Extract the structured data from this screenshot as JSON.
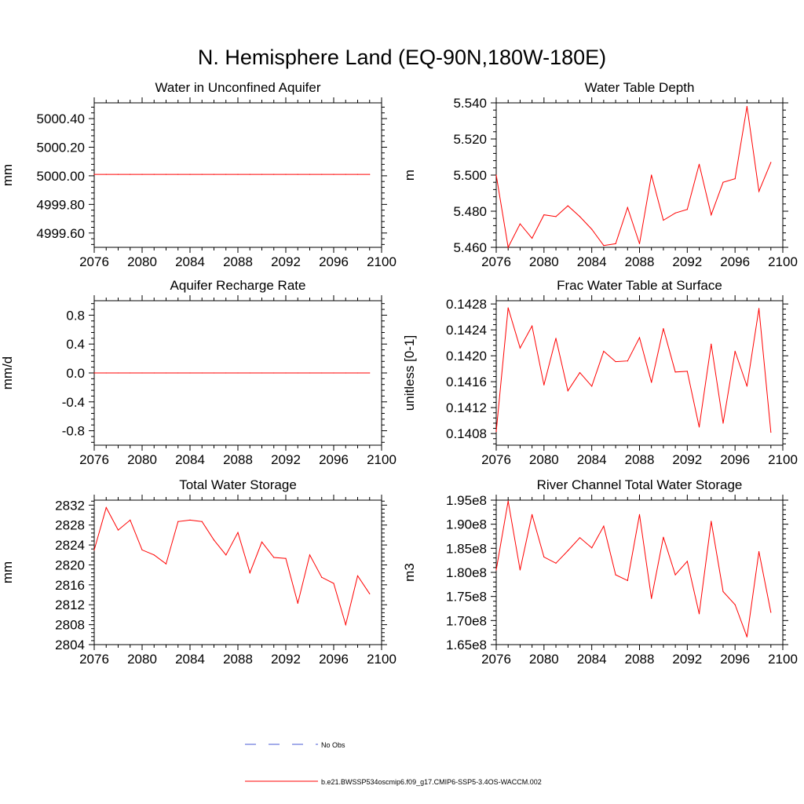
{
  "figure": {
    "title": "N. Hemisphere Land (EQ-90N,180W-180E)",
    "series_color": "#ff0000",
    "obs_color": "#4a5bd4",
    "legend": {
      "obs_label": "No Obs",
      "model_label": "b.e21.BWSSP534oscmip6.f09_g17.CMIP6-SSP5-3.4OS-WACCM.002"
    }
  },
  "chart_data": [
    {
      "type": "line",
      "title": "Water in Unconfined Aquifer",
      "ylabel": "mm",
      "xlim": [
        2076,
        2100
      ],
      "xticks": [
        2076,
        2080,
        2084,
        2088,
        2092,
        2096,
        2100
      ],
      "xtick_labels": [
        "2076",
        "2080",
        "2084",
        "2088",
        "2092",
        "2096",
        "2100"
      ],
      "ylim": [
        4999.5,
        5000.51
      ],
      "yticks": [
        4999.6,
        4999.8,
        5000.0,
        5000.2,
        5000.4
      ],
      "ytick_labels": [
        "4999.60",
        "4999.80",
        "5000.00",
        "5000.20",
        "5000.40"
      ],
      "yminor_step": 0.04,
      "x": [
        2076,
        2077,
        2078,
        2079,
        2080,
        2081,
        2082,
        2083,
        2084,
        2085,
        2086,
        2087,
        2088,
        2089,
        2090,
        2091,
        2092,
        2093,
        2094,
        2095,
        2096,
        2097,
        2098,
        2099
      ],
      "values": [
        5000.01,
        5000.01,
        5000.01,
        5000.01,
        5000.01,
        5000.01,
        5000.01,
        5000.01,
        5000.01,
        5000.01,
        5000.01,
        5000.01,
        5000.01,
        5000.01,
        5000.01,
        5000.01,
        5000.01,
        5000.01,
        5000.01,
        5000.01,
        5000.01,
        5000.01,
        5000.01,
        5000.01
      ]
    },
    {
      "type": "line",
      "title": "Water Table Depth",
      "ylabel": "m",
      "xlim": [
        2076,
        2100
      ],
      "xticks": [
        2076,
        2080,
        2084,
        2088,
        2092,
        2096,
        2100
      ],
      "xtick_labels": [
        "2076",
        "2080",
        "2084",
        "2088",
        "2092",
        "2096",
        "2100"
      ],
      "ylim": [
        5.46,
        5.54
      ],
      "yticks": [
        5.46,
        5.48,
        5.5,
        5.52,
        5.54
      ],
      "ytick_labels": [
        "5.460",
        "5.480",
        "5.500",
        "5.520",
        "5.540"
      ],
      "yminor_step": 0.004,
      "x": [
        2076,
        2077,
        2078,
        2079,
        2080,
        2081,
        2082,
        2083,
        2084,
        2085,
        2086,
        2087,
        2088,
        2089,
        2090,
        2091,
        2092,
        2093,
        2094,
        2095,
        2096,
        2097,
        2098,
        2099
      ],
      "values": [
        5.5,
        5.46,
        5.473,
        5.465,
        5.478,
        5.477,
        5.483,
        5.477,
        5.47,
        5.461,
        5.462,
        5.482,
        5.462,
        5.5,
        5.475,
        5.479,
        5.481,
        5.506,
        5.478,
        5.496,
        5.498,
        5.538,
        5.491,
        5.507
      ]
    },
    {
      "type": "line",
      "title": "Aquifer Recharge Rate",
      "ylabel": "mm/d",
      "xlim": [
        2076,
        2100
      ],
      "xticks": [
        2076,
        2080,
        2084,
        2088,
        2092,
        2096,
        2100
      ],
      "xtick_labels": [
        "2076",
        "2080",
        "2084",
        "2088",
        "2092",
        "2096",
        "2100"
      ],
      "ylim": [
        -1.0,
        1.0
      ],
      "yticks": [
        -0.8,
        -0.4,
        0.0,
        0.4,
        0.8
      ],
      "ytick_labels": [
        "-0.8",
        "-0.4",
        "0.0",
        "0.4",
        "0.8"
      ],
      "yminor_step": 0.08,
      "x": [
        2076,
        2077,
        2078,
        2079,
        2080,
        2081,
        2082,
        2083,
        2084,
        2085,
        2086,
        2087,
        2088,
        2089,
        2090,
        2091,
        2092,
        2093,
        2094,
        2095,
        2096,
        2097,
        2098,
        2099
      ],
      "values": [
        0,
        0,
        0,
        0,
        0,
        0,
        0,
        0,
        0,
        0,
        0,
        0,
        0,
        0,
        0,
        0,
        0,
        0,
        0,
        0,
        0,
        0,
        0,
        0
      ]
    },
    {
      "type": "line",
      "title": "Frac Water Table at Surface",
      "ylabel": "unitless [0-1]",
      "xlim": [
        2076,
        2100
      ],
      "xticks": [
        2076,
        2080,
        2084,
        2088,
        2092,
        2096,
        2100
      ],
      "xtick_labels": [
        "2076",
        "2080",
        "2084",
        "2088",
        "2092",
        "2096",
        "2100"
      ],
      "ylim": [
        0.14062,
        0.14285
      ],
      "yticks": [
        0.1408,
        0.1412,
        0.1416,
        0.142,
        0.1424,
        0.1428
      ],
      "ytick_labels": [
        "0.1408",
        "0.1412",
        "0.1416",
        "0.1420",
        "0.1424",
        "0.1428"
      ],
      "yminor_step": 8e-05,
      "x": [
        2076,
        2077,
        2078,
        2079,
        2080,
        2081,
        2082,
        2083,
        2084,
        2085,
        2086,
        2087,
        2088,
        2089,
        2090,
        2091,
        2092,
        2093,
        2094,
        2095,
        2096,
        2097,
        2098,
        2099
      ],
      "values": [
        0.14083,
        0.14274,
        0.14212,
        0.14246,
        0.14155,
        0.14227,
        0.14146,
        0.14174,
        0.14153,
        0.14207,
        0.14191,
        0.14192,
        0.14228,
        0.14159,
        0.14242,
        0.14175,
        0.14176,
        0.1409,
        0.14218,
        0.14096,
        0.14207,
        0.14153,
        0.14273,
        0.14082
      ]
    },
    {
      "type": "line",
      "title": "Total Water Storage",
      "ylabel": "mm",
      "xlim": [
        2076,
        2100
      ],
      "xticks": [
        2076,
        2080,
        2084,
        2088,
        2092,
        2096,
        2100
      ],
      "xtick_labels": [
        "2076",
        "2080",
        "2084",
        "2088",
        "2092",
        "2096",
        "2100"
      ],
      "ylim": [
        2804,
        2833
      ],
      "yticks": [
        2804,
        2808,
        2812,
        2816,
        2820,
        2824,
        2828,
        2832
      ],
      "ytick_labels": [
        "2804",
        "2808",
        "2812",
        "2816",
        "2820",
        "2824",
        "2828",
        "2832"
      ],
      "yminor_step": 0.8,
      "x": [
        2076,
        2077,
        2078,
        2079,
        2080,
        2081,
        2082,
        2083,
        2084,
        2085,
        2086,
        2087,
        2088,
        2089,
        2090,
        2091,
        2092,
        2093,
        2094,
        2095,
        2096,
        2097,
        2098,
        2099
      ],
      "values": [
        2823.0,
        2831.5,
        2827.0,
        2829.0,
        2823.0,
        2822.0,
        2820.2,
        2828.7,
        2829.0,
        2828.7,
        2825.0,
        2822.0,
        2826.5,
        2818.4,
        2824.6,
        2821.5,
        2821.3,
        2812.3,
        2822.0,
        2817.5,
        2816.3,
        2808.0,
        2817.8,
        2814.2
      ]
    },
    {
      "type": "line",
      "title": "River Channel Total Water Storage",
      "ylabel": "m3",
      "xlim": [
        2076,
        2100
      ],
      "xticks": [
        2076,
        2080,
        2084,
        2088,
        2092,
        2096,
        2100
      ],
      "xtick_labels": [
        "2076",
        "2080",
        "2084",
        "2088",
        "2092",
        "2096",
        "2100"
      ],
      "ylim": [
        165000000,
        195000000
      ],
      "yticks": [
        165000000,
        170000000,
        175000000,
        180000000,
        185000000,
        190000000,
        195000000
      ],
      "ytick_labels": [
        "1.65e8",
        "1.70e8",
        "1.75e8",
        "1.80e8",
        "1.85e8",
        "1.90e8",
        "1.95e8"
      ],
      "yminor_step": 1000000,
      "x": [
        2076,
        2077,
        2078,
        2079,
        2080,
        2081,
        2082,
        2083,
        2084,
        2085,
        2086,
        2087,
        2088,
        2089,
        2090,
        2091,
        2092,
        2093,
        2094,
        2095,
        2096,
        2097,
        2098,
        2099
      ],
      "values": [
        180500000,
        194800000,
        180500000,
        192000000,
        183200000,
        181900000,
        184500000,
        187200000,
        185100000,
        189600000,
        179500000,
        178300000,
        192000000,
        174600000,
        187300000,
        179500000,
        182300000,
        171400000,
        190600000,
        176000000,
        173300000,
        166600000,
        184300000,
        171700000
      ]
    }
  ]
}
